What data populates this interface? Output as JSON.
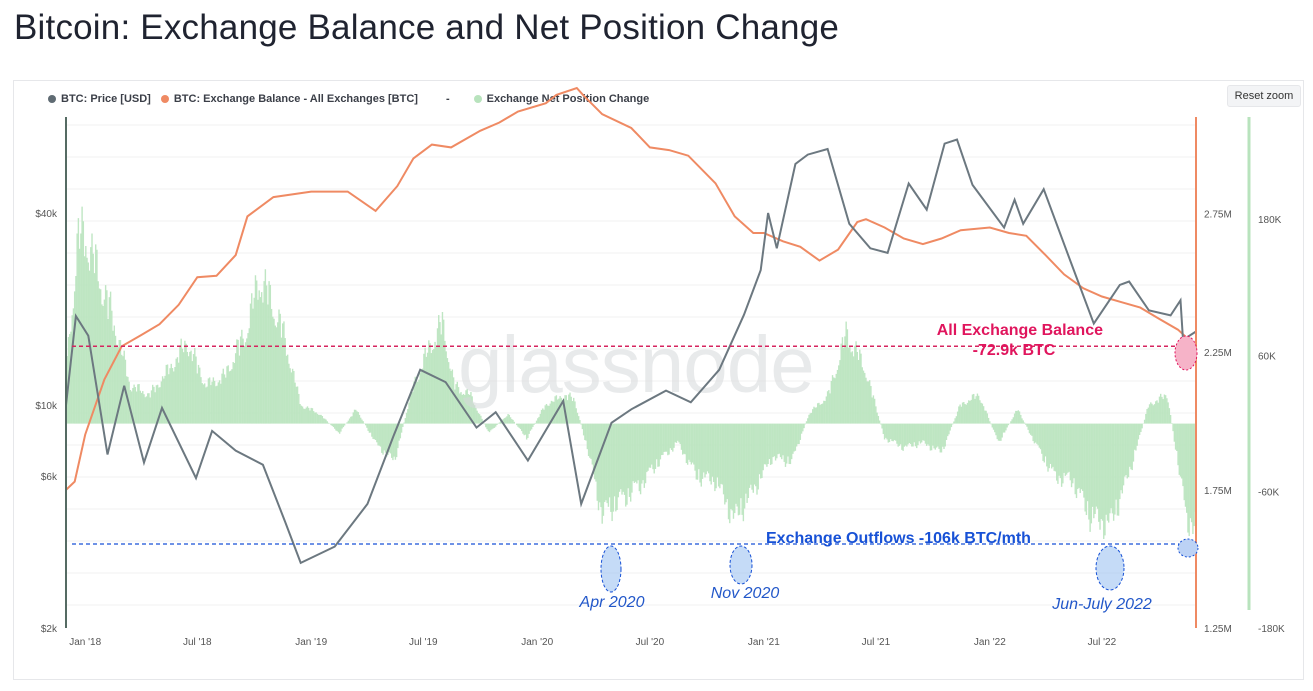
{
  "title": "Bitcoin: Exchange Balance and Net Position Change",
  "reset_zoom_label": "Reset zoom",
  "watermark": "glassnode",
  "legend": [
    {
      "label": "BTC: Price [USD]",
      "color": "#5f6b73"
    },
    {
      "label": "BTC: Exchange Balance - All Exchanges [BTC]",
      "color": "#ef8a63"
    },
    {
      "label": "-",
      "color": ""
    },
    {
      "label": "Exchange Net Position Change",
      "color": "#b8e3bd"
    }
  ],
  "annotations": {
    "balance_title": "All Exchange Balance",
    "balance_value": "-72.9k BTC",
    "outflows": "Exchange Outflows -106k BTC/mth",
    "apr2020": "Apr 2020",
    "nov2020": "Nov 2020",
    "junjul2022": "Jun-July 2022"
  },
  "axes": {
    "x_ticks": [
      "Jan '18",
      "Jul '18",
      "Jan '19",
      "Jul '19",
      "Jan '20",
      "Jul '20",
      "Jan '21",
      "Jul '21",
      "Jan '22",
      "Jul '22"
    ],
    "price_ticks": [
      "$40k",
      "$10k",
      "$6k",
      "$2k"
    ],
    "balance_ticks": [
      "2.75M",
      "2.25M",
      "1.75M",
      "1.25M"
    ],
    "npc_ticks": [
      "180K",
      "60K",
      "-60K",
      "-180K"
    ]
  },
  "chart_data": {
    "type": "line",
    "title": "Bitcoin: Exchange Balance and Net Position Change",
    "x_range": [
      "2017-12-01",
      "2022-11-30"
    ],
    "price_scale": "log",
    "price_range_usd": [
      2000,
      80000
    ],
    "balance_range_btc": [
      1250000,
      3100000
    ],
    "npc_range_btc": [
      -180000,
      270000
    ],
    "series": [
      {
        "name": "BTC: Price [USD]",
        "color": "#5f6b73",
        "points": [
          [
            "2017-12-01",
            10000
          ],
          [
            "2017-12-17",
            19000
          ],
          [
            "2018-01-06",
            16500
          ],
          [
            "2018-02-06",
            7000
          ],
          [
            "2018-03-05",
            11500
          ],
          [
            "2018-04-06",
            6600
          ],
          [
            "2018-05-05",
            9800
          ],
          [
            "2018-06-29",
            5900
          ],
          [
            "2018-07-25",
            8300
          ],
          [
            "2018-09-01",
            7200
          ],
          [
            "2018-10-15",
            6500
          ],
          [
            "2018-11-20",
            4300
          ],
          [
            "2018-12-15",
            3200
          ],
          [
            "2019-02-08",
            3600
          ],
          [
            "2019-04-02",
            4900
          ],
          [
            "2019-05-14",
            8000
          ],
          [
            "2019-06-26",
            12900
          ],
          [
            "2019-08-06",
            11800
          ],
          [
            "2019-09-25",
            8500
          ],
          [
            "2019-10-26",
            9500
          ],
          [
            "2019-12-17",
            6700
          ],
          [
            "2020-02-12",
            10300
          ],
          [
            "2020-03-12",
            4900
          ],
          [
            "2020-04-30",
            8800
          ],
          [
            "2020-06-01",
            9700
          ],
          [
            "2020-07-27",
            11100
          ],
          [
            "2020-09-05",
            10200
          ],
          [
            "2020-10-21",
            12900
          ],
          [
            "2020-11-30",
            19200
          ],
          [
            "2020-12-27",
            26500
          ],
          [
            "2021-01-08",
            40000
          ],
          [
            "2021-01-22",
            31000
          ],
          [
            "2021-02-21",
            57000
          ],
          [
            "2021-03-13",
            61000
          ],
          [
            "2021-04-14",
            63500
          ],
          [
            "2021-05-19",
            37000
          ],
          [
            "2021-06-22",
            31000
          ],
          [
            "2021-07-20",
            30000
          ],
          [
            "2021-08-23",
            49500
          ],
          [
            "2021-09-21",
            41000
          ],
          [
            "2021-10-20",
            66000
          ],
          [
            "2021-11-09",
            68000
          ],
          [
            "2021-12-04",
            49000
          ],
          [
            "2022-01-24",
            36000
          ],
          [
            "2022-02-10",
            44000
          ],
          [
            "2022-02-24",
            37000
          ],
          [
            "2022-03-29",
            47500
          ],
          [
            "2022-05-12",
            28000
          ],
          [
            "2022-06-18",
            18000
          ],
          [
            "2022-07-30",
            23800
          ],
          [
            "2022-08-14",
            24400
          ],
          [
            "2022-09-15",
            19800
          ],
          [
            "2022-10-20",
            19100
          ],
          [
            "2022-11-05",
            21300
          ],
          [
            "2022-11-09",
            16000
          ],
          [
            "2022-11-30",
            17000
          ]
        ]
      },
      {
        "name": "BTC: Exchange Balance - All Exchanges [BTC]",
        "color": "#ef8a63",
        "points": [
          [
            "2017-12-01",
            1750000
          ],
          [
            "2017-12-15",
            1780000
          ],
          [
            "2018-01-01",
            1950000
          ],
          [
            "2018-02-01",
            2150000
          ],
          [
            "2018-03-01",
            2270000
          ],
          [
            "2018-04-01",
            2310000
          ],
          [
            "2018-05-01",
            2350000
          ],
          [
            "2018-06-01",
            2420000
          ],
          [
            "2018-07-01",
            2520000
          ],
          [
            "2018-08-01",
            2525000
          ],
          [
            "2018-09-01",
            2600000
          ],
          [
            "2018-09-20",
            2740000
          ],
          [
            "2018-11-01",
            2810000
          ],
          [
            "2019-01-01",
            2830000
          ],
          [
            "2019-03-01",
            2830000
          ],
          [
            "2019-04-15",
            2760000
          ],
          [
            "2019-05-20",
            2850000
          ],
          [
            "2019-06-15",
            2950000
          ],
          [
            "2019-07-15",
            3000000
          ],
          [
            "2019-08-15",
            2990000
          ],
          [
            "2019-10-01",
            3050000
          ],
          [
            "2019-11-01",
            3080000
          ],
          [
            "2019-12-01",
            3120000
          ],
          [
            "2020-01-15",
            3150000
          ],
          [
            "2020-02-01",
            3180000
          ],
          [
            "2020-03-05",
            3205000
          ],
          [
            "2020-03-15",
            3180000
          ],
          [
            "2020-04-15",
            3110000
          ],
          [
            "2020-06-01",
            3060000
          ],
          [
            "2020-07-01",
            2990000
          ],
          [
            "2020-08-01",
            2980000
          ],
          [
            "2020-09-01",
            2960000
          ],
          [
            "2020-10-15",
            2860000
          ],
          [
            "2020-11-15",
            2740000
          ],
          [
            "2020-12-15",
            2680000
          ],
          [
            "2021-01-01",
            2680000
          ],
          [
            "2021-02-01",
            2650000
          ],
          [
            "2021-03-01",
            2630000
          ],
          [
            "2021-04-01",
            2580000
          ],
          [
            "2021-05-01",
            2620000
          ],
          [
            "2021-06-01",
            2720000
          ],
          [
            "2021-06-15",
            2730000
          ],
          [
            "2021-07-15",
            2700000
          ],
          [
            "2021-08-15",
            2660000
          ],
          [
            "2021-09-15",
            2640000
          ],
          [
            "2021-10-15",
            2660000
          ],
          [
            "2021-11-15",
            2690000
          ],
          [
            "2022-01-01",
            2700000
          ],
          [
            "2022-02-01",
            2680000
          ],
          [
            "2022-03-01",
            2670000
          ],
          [
            "2022-04-01",
            2600000
          ],
          [
            "2022-05-01",
            2530000
          ],
          [
            "2022-06-01",
            2480000
          ],
          [
            "2022-07-01",
            2450000
          ],
          [
            "2022-08-01",
            2430000
          ],
          [
            "2022-09-01",
            2410000
          ],
          [
            "2022-10-01",
            2370000
          ],
          [
            "2022-11-01",
            2330000
          ],
          [
            "2022-11-30",
            2270000
          ]
        ]
      },
      {
        "name": "Exchange Net Position Change",
        "color": "#b8e3bd",
        "points": [
          [
            "2017-12-01",
            50000
          ],
          [
            "2017-12-20",
            190000
          ],
          [
            "2018-01-01",
            200000
          ],
          [
            "2018-01-20",
            160000
          ],
          [
            "2018-02-15",
            110000
          ],
          [
            "2018-03-15",
            40000
          ],
          [
            "2018-04-15",
            30000
          ],
          [
            "2018-05-15",
            55000
          ],
          [
            "2018-06-15",
            85000
          ],
          [
            "2018-07-15",
            40000
          ],
          [
            "2018-08-15",
            50000
          ],
          [
            "2018-09-20",
            100000
          ],
          [
            "2018-10-10",
            155000
          ],
          [
            "2018-11-15",
            100000
          ],
          [
            "2018-12-15",
            20000
          ],
          [
            "2019-01-15",
            10000
          ],
          [
            "2019-02-15",
            -10000
          ],
          [
            "2019-03-15",
            15000
          ],
          [
            "2019-04-15",
            -20000
          ],
          [
            "2019-05-15",
            -40000
          ],
          [
            "2019-06-15",
            40000
          ],
          [
            "2019-07-15",
            85000
          ],
          [
            "2019-08-01",
            105000
          ],
          [
            "2019-08-20",
            40000
          ],
          [
            "2019-09-15",
            30000
          ],
          [
            "2019-10-15",
            -10000
          ],
          [
            "2019-11-15",
            10000
          ],
          [
            "2019-12-15",
            -15000
          ],
          [
            "2020-01-15",
            20000
          ],
          [
            "2020-02-15",
            30000
          ],
          [
            "2020-03-01",
            25000
          ],
          [
            "2020-03-20",
            -20000
          ],
          [
            "2020-04-15",
            -95000
          ],
          [
            "2020-05-15",
            -80000
          ],
          [
            "2020-06-15",
            -65000
          ],
          [
            "2020-07-15",
            -40000
          ],
          [
            "2020-08-15",
            -20000
          ],
          [
            "2020-09-15",
            -55000
          ],
          [
            "2020-10-15",
            -60000
          ],
          [
            "2020-11-15",
            -100000
          ],
          [
            "2020-12-15",
            -70000
          ],
          [
            "2021-01-15",
            -35000
          ],
          [
            "2021-02-15",
            -40000
          ],
          [
            "2021-03-15",
            10000
          ],
          [
            "2021-04-15",
            30000
          ],
          [
            "2021-05-15",
            95000
          ],
          [
            "2021-06-15",
            55000
          ],
          [
            "2021-07-15",
            -15000
          ],
          [
            "2021-08-15",
            -25000
          ],
          [
            "2021-09-15",
            -20000
          ],
          [
            "2021-10-15",
            -30000
          ],
          [
            "2021-11-15",
            20000
          ],
          [
            "2021-12-15",
            30000
          ],
          [
            "2022-01-15",
            -20000
          ],
          [
            "2022-02-15",
            15000
          ],
          [
            "2022-03-15",
            -20000
          ],
          [
            "2022-04-15",
            -55000
          ],
          [
            "2022-05-15",
            -60000
          ],
          [
            "2022-06-15",
            -100000
          ],
          [
            "2022-07-15",
            -105000
          ],
          [
            "2022-08-15",
            -50000
          ],
          [
            "2022-09-15",
            20000
          ],
          [
            "2022-10-15",
            30000
          ],
          [
            "2022-11-15",
            -100000
          ],
          [
            "2022-11-30",
            -106000
          ]
        ]
      }
    ],
    "reference_lines": [
      {
        "axis": "balance",
        "value": 2270000,
        "style": "dashed",
        "color": "#d6245f"
      },
      {
        "axis": "npc",
        "value": -106000,
        "style": "dashed",
        "color": "#1751d6"
      }
    ]
  }
}
